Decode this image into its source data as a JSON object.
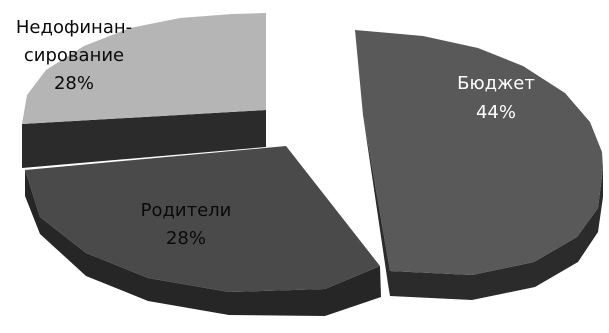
{
  "chart_data": {
    "type": "pie",
    "title": "",
    "style": "3d-exploded",
    "slices": [
      {
        "label_lines": [
          "Бюджет"
        ],
        "percent_label": "44%",
        "value": 44,
        "color": "#595959",
        "side_color": "#2b2b2b",
        "label_color": "#ffffff"
      },
      {
        "label_lines": [
          "Родители"
        ],
        "percent_label": "28%",
        "value": 28,
        "color": "#4a4a4a",
        "side_color": "#262626",
        "label_color": "#0a0a0a"
      },
      {
        "label_lines": [
          "Недофинан-",
          "сирование"
        ],
        "percent_label": "28%",
        "value": 28,
        "color": "#b5b5b5",
        "side_color": "#2b2b2b",
        "label_color": "#0a0a0a"
      }
    ]
  }
}
